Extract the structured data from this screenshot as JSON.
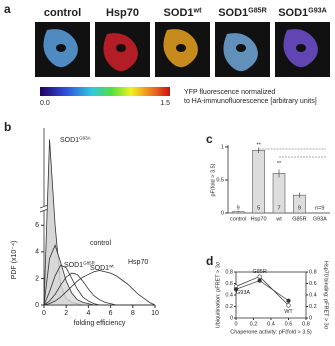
{
  "panel_a": {
    "label": "a",
    "images": [
      {
        "title": "control",
        "color": "#5aa0e0"
      },
      {
        "title": "Hsp70",
        "color": "#d0202a"
      },
      {
        "title": "SOD1",
        "sup": "wt",
        "color": "#e8a020"
      },
      {
        "title": "SOD1",
        "sup": "G85R",
        "color": "#70a8d8"
      },
      {
        "title": "SOD1",
        "sup": "G93A",
        "color": "#7050d0"
      }
    ],
    "colorbar": {
      "min": "0.0",
      "max": "1.5",
      "caption": [
        "YFP fluorescence normalized",
        "to HA-immunofluorescence [arbitrary units]"
      ]
    }
  },
  "chart_data": [
    {
      "type": "line",
      "panel": "b",
      "ylabel": "PDF (x10⁻⁴)",
      "xlabel": "folding efficiency",
      "x": [
        0,
        0.5,
        1,
        1.5,
        2,
        2.5,
        3,
        3.5,
        4,
        4.5,
        5,
        5.5,
        6,
        6.5,
        7,
        7.5,
        8,
        8.5,
        9,
        9.5,
        10
      ],
      "xlim": [
        0,
        10
      ],
      "xticks": [
        0,
        2,
        4,
        6,
        8,
        10
      ],
      "ylim": [
        0,
        30
      ],
      "ybreak": 7,
      "yticks": [
        0,
        2,
        4,
        6
      ],
      "series": [
        {
          "name": "SOD1",
          "sup": "G93A",
          "color": "#333",
          "fill": "#ccc",
          "values": [
            0,
            28,
            6,
            1.5,
            0.5,
            0.2,
            0.1,
            0,
            0,
            0,
            0,
            0,
            0,
            0,
            0,
            0,
            0,
            0,
            0,
            0,
            0
          ]
        },
        {
          "name": "control",
          "color": "#333",
          "fill": "#d8d8d8",
          "values": [
            0,
            3.5,
            4.5,
            3.2,
            1.8,
            0.9,
            0.4,
            0.2,
            0.1,
            0,
            0,
            0,
            0,
            0,
            0,
            0,
            0,
            0,
            0,
            0,
            0
          ]
        },
        {
          "name": "SOD1",
          "sup": "G85R",
          "color": "#333",
          "values": [
            0,
            1,
            2.2,
            3,
            2.8,
            2,
            1.2,
            0.6,
            0.3,
            0.1,
            0,
            0,
            0,
            0,
            0,
            0,
            0,
            0,
            0,
            0,
            0
          ]
        },
        {
          "name": "SOD1",
          "sup": "wt",
          "color": "#333",
          "values": [
            0,
            0.3,
            0.8,
            1.5,
            2.1,
            2.4,
            2.3,
            1.8,
            1.2,
            0.7,
            0.4,
            0.2,
            0.1,
            0,
            0,
            0,
            0,
            0,
            0,
            0,
            0
          ]
        },
        {
          "name": "Hsp70",
          "color": "#333",
          "values": [
            0,
            0.1,
            0.3,
            0.6,
            1,
            1.4,
            1.8,
            2.1,
            2.3,
            2.5,
            2.6,
            2.5,
            2.4,
            2.2,
            1.9,
            1.6,
            1.2,
            0.8,
            0.5,
            0.2,
            0
          ]
        }
      ]
    },
    {
      "type": "bar",
      "panel": "c",
      "ylabel": "pF(fold > 3.5)",
      "categories": [
        "control",
        "Hsp70",
        "wt",
        "G85R",
        "G93A"
      ],
      "values": [
        0.02,
        0.95,
        0.6,
        0.27,
        0
      ],
      "errors": [
        0.01,
        0.04,
        0.06,
        0.04,
        0
      ],
      "n_labels": [
        "9",
        "5",
        "7",
        "9",
        "n=9"
      ],
      "annotations": [
        "**",
        "**"
      ],
      "color": "#ddd",
      "ylim": [
        0,
        1
      ],
      "yticks": [
        0,
        0.5,
        1
      ]
    },
    {
      "type": "line",
      "panel": "d",
      "xlabel": "Chaperone activity: pF(fold > 3.5)",
      "ylabel": "Ubiquitination: pFRET > 3σ",
      "y2label": "Hsp70 binding: pFRET > 3σ",
      "x": [
        0,
        0.27,
        0.6
      ],
      "point_labels": [
        "G93A",
        "G85R",
        "WT"
      ],
      "xlim": [
        0,
        0.8
      ],
      "xticks": [
        0,
        0.2,
        0.4,
        0.6,
        0.8
      ],
      "ylim": [
        0,
        0.8
      ],
      "yticks": [
        0,
        0.2,
        0.4,
        0.6,
        0.8
      ],
      "y2lim": [
        0,
        0.8
      ],
      "y2ticks": [
        0,
        0.2,
        0.4,
        0.6,
        0.8
      ],
      "series": [
        {
          "color": "#fff",
          "values": [
            0.55,
            0.72,
            0.22
          ]
        },
        {
          "color": "#333",
          "axis": "y2",
          "values": [
            0.5,
            0.65,
            0.3
          ]
        }
      ]
    }
  ]
}
